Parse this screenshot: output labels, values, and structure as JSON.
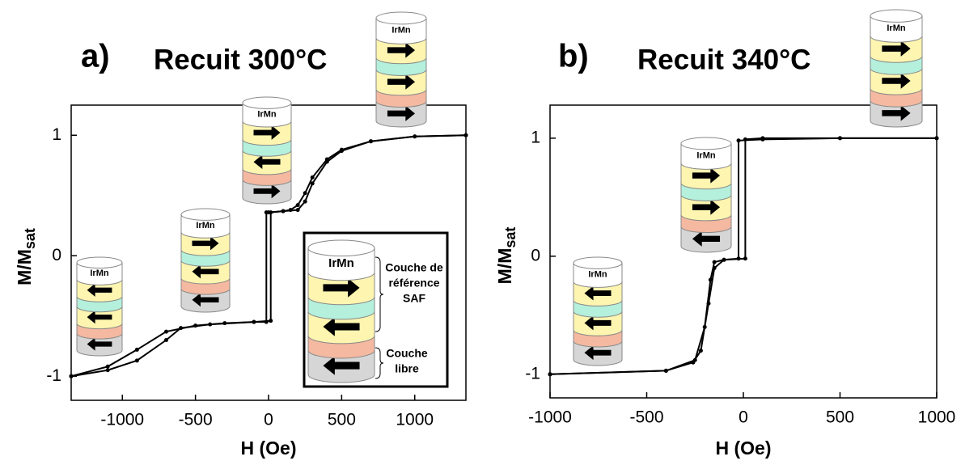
{
  "chart_data": [
    {
      "type": "line",
      "panel_label": "a)",
      "title": "Recuit 300°C",
      "xlabel": "H (Oe)",
      "ylabel": {
        "main": "M/M",
        "sub": "sat"
      },
      "xlim": [
        -1350,
        1350
      ],
      "ylim": [
        -1.2,
        1.25
      ],
      "xticks": [
        -1000,
        -500,
        0,
        500,
        1000
      ],
      "yticks": [
        -1,
        0,
        1
      ],
      "stack_label": "IrMn",
      "inset": {
        "layer_label": "IrMn",
        "reference_label": [
          "Couche de",
          "référence",
          "SAF"
        ],
        "free_label": [
          "Couche",
          "libre"
        ]
      },
      "series": [
        {
          "color": "#000000",
          "x": [
            1350,
            1000,
            700,
            500,
            400,
            300,
            250,
            200,
            150,
            100,
            0,
            -15,
            -15,
            -100,
            -300,
            -500,
            -700,
            -900,
            -1100,
            -1350
          ],
          "values": [
            1,
            0.99,
            0.95,
            0.88,
            0.8,
            0.65,
            0.52,
            0.42,
            0.38,
            0.37,
            0.36,
            0.36,
            -0.55,
            -0.55,
            -0.56,
            -0.58,
            -0.63,
            -0.78,
            -0.92,
            -1
          ]
        },
        {
          "color": "#000000",
          "x": [
            -1350,
            -1100,
            -900,
            -700,
            -600,
            -400,
            -100,
            15,
            15,
            100,
            200,
            250,
            300,
            400,
            500,
            700,
            1000,
            1350
          ],
          "values": [
            -1,
            -0.95,
            -0.87,
            -0.7,
            -0.6,
            -0.57,
            -0.55,
            -0.54,
            0.36,
            0.37,
            0.38,
            0.45,
            0.6,
            0.78,
            0.87,
            0.95,
            0.99,
            1
          ]
        }
      ]
    },
    {
      "type": "line",
      "panel_label": "b)",
      "title": "Recuit 340°C",
      "xlabel": "H (Oe)",
      "ylabel": {
        "main": "M/M",
        "sub": "sat"
      },
      "xlim": [
        -1000,
        1000
      ],
      "ylim": [
        -1.2,
        1.28
      ],
      "xticks": [
        -1000,
        -500,
        0,
        500,
        1000
      ],
      "yticks": [
        -1,
        0,
        1
      ],
      "stack_label": "IrMn",
      "series": [
        {
          "color": "#000000",
          "x": [
            1000,
            500,
            100,
            -25,
            -25,
            -100,
            -150,
            -180,
            -220,
            -260,
            -400,
            -1000
          ],
          "values": [
            1,
            1,
            0.99,
            0.98,
            -0.02,
            -0.03,
            -0.1,
            -0.4,
            -0.8,
            -0.9,
            -0.97,
            -1
          ]
        },
        {
          "color": "#000000",
          "x": [
            -1000,
            -400,
            -250,
            -200,
            -170,
            -150,
            -100,
            10,
            10,
            100,
            500,
            1000
          ],
          "values": [
            -1,
            -0.97,
            -0.88,
            -0.6,
            -0.2,
            -0.05,
            -0.03,
            -0.02,
            0.99,
            1,
            1,
            1
          ]
        }
      ]
    }
  ]
}
